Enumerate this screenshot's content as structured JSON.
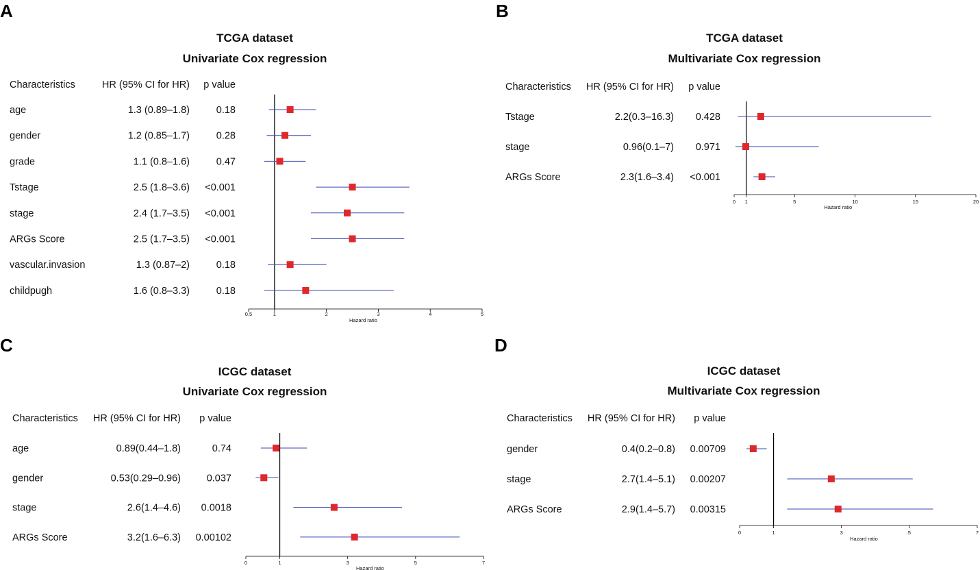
{
  "figure": {
    "colors": {
      "ci_line": "#3b47b5",
      "marker": "#e0282b",
      "axis": "#000000"
    }
  },
  "chart_data": [
    {
      "panel": "A",
      "type": "forest",
      "title": "TCGA dataset",
      "subtitle": "Univariate Cox regression",
      "headers": [
        "Characteristics",
        "HR (95% CI for HR)",
        "p value"
      ],
      "rows": [
        {
          "name": "age",
          "hr_text": "1.3 (0.89–1.8)",
          "p": "0.18",
          "hr": 1.3,
          "lo": 0.89,
          "hi": 1.8
        },
        {
          "name": "gender",
          "hr_text": "1.2 (0.85–1.7)",
          "p": "0.28",
          "hr": 1.2,
          "lo": 0.85,
          "hi": 1.7
        },
        {
          "name": "grade",
          "hr_text": "1.1 (0.8–1.6)",
          "p": "0.47",
          "hr": 1.1,
          "lo": 0.8,
          "hi": 1.6
        },
        {
          "name": "Tstage",
          "hr_text": "2.5 (1.8–3.6)",
          "p": "<0.001",
          "hr": 2.5,
          "lo": 1.8,
          "hi": 3.6
        },
        {
          "name": "stage",
          "hr_text": "2.4 (1.7–3.5)",
          "p": "<0.001",
          "hr": 2.4,
          "lo": 1.7,
          "hi": 3.5
        },
        {
          "name": "ARGs Score",
          "hr_text": "2.5 (1.7–3.5)",
          "p": "<0.001",
          "hr": 2.5,
          "lo": 1.7,
          "hi": 3.5
        },
        {
          "name": "vascular.invasion",
          "hr_text": "1.3 (0.87–2)",
          "p": "0.18",
          "hr": 1.3,
          "lo": 0.87,
          "hi": 2.0
        },
        {
          "name": "childpugh",
          "hr_text": "1.6 (0.8–3.3)",
          "p": "0.18",
          "hr": 1.6,
          "lo": 0.8,
          "hi": 3.3
        }
      ],
      "xlim": [
        0.5,
        5
      ],
      "xticks": [
        0.5,
        1,
        2,
        3,
        4,
        5
      ],
      "xticklabels": [
        "0.5",
        "1",
        "2",
        "3",
        "4",
        "5"
      ],
      "ref_line": 1,
      "xlabel": "Hazard ratio"
    },
    {
      "panel": "B",
      "type": "forest",
      "title": "TCGA  dataset",
      "subtitle": "Multivariate Cox regression",
      "headers": [
        "Characteristics",
        "HR (95% CI for HR)",
        "p value"
      ],
      "rows": [
        {
          "name": "Tstage",
          "hr_text": "2.2(0.3–16.3)",
          "p": "0.428",
          "hr": 2.2,
          "lo": 0.3,
          "hi": 16.3
        },
        {
          "name": "stage",
          "hr_text": "0.96(0.1–7)",
          "p": "0.971",
          "hr": 0.96,
          "lo": 0.1,
          "hi": 7.0
        },
        {
          "name": "ARGs Score",
          "hr_text": "2.3(1.6–3.4)",
          "p": "<0.001",
          "hr": 2.3,
          "lo": 1.6,
          "hi": 3.4
        }
      ],
      "xlim": [
        0,
        20
      ],
      "xticks": [
        0,
        1,
        5,
        10,
        15,
        20
      ],
      "xticklabels": [
        "0",
        "1",
        "5",
        "10",
        "15",
        "20"
      ],
      "ref_line": 1,
      "xlabel": "Hazard ratio"
    },
    {
      "panel": "C",
      "type": "forest",
      "title": "ICGC dataset",
      "subtitle": "Univariate Cox regression",
      "headers": [
        "Characteristics",
        "HR (95% CI for HR)",
        "p value"
      ],
      "rows": [
        {
          "name": "age",
          "hr_text": "0.89(0.44–1.8)",
          "p": "0.74",
          "hr": 0.89,
          "lo": 0.44,
          "hi": 1.8
        },
        {
          "name": "gender",
          "hr_text": "0.53(0.29–0.96)",
          "p": "0.037",
          "hr": 0.53,
          "lo": 0.29,
          "hi": 0.96
        },
        {
          "name": "stage",
          "hr_text": "2.6(1.4–4.6)",
          "p": "0.0018",
          "hr": 2.6,
          "lo": 1.4,
          "hi": 4.6
        },
        {
          "name": "ARGs Score",
          "hr_text": "3.2(1.6–6.3)",
          "p": "0.00102",
          "hr": 3.2,
          "lo": 1.6,
          "hi": 6.3
        }
      ],
      "xlim": [
        0,
        7
      ],
      "xticks": [
        0,
        1,
        3,
        5,
        7
      ],
      "xticklabels": [
        "0",
        "1",
        "3",
        "5",
        "7"
      ],
      "ref_line": 1,
      "xlabel": "Hazard ratio"
    },
    {
      "panel": "D",
      "type": "forest",
      "title": "ICGC dataset",
      "subtitle": "Multivariate Cox regression",
      "headers": [
        "Characteristics",
        "HR (95% CI for HR)",
        "p value"
      ],
      "rows": [
        {
          "name": "gender",
          "hr_text": "0.4(0.2–0.8)",
          "p": "0.00709",
          "hr": 0.4,
          "lo": 0.2,
          "hi": 0.8
        },
        {
          "name": "stage",
          "hr_text": "2.7(1.4–5.1)",
          "p": "0.00207",
          "hr": 2.7,
          "lo": 1.4,
          "hi": 5.1
        },
        {
          "name": "ARGs Score",
          "hr_text": "2.9(1.4–5.7)",
          "p": "0.00315",
          "hr": 2.9,
          "lo": 1.4,
          "hi": 5.7
        }
      ],
      "xlim": [
        0,
        7
      ],
      "xticks": [
        0,
        1,
        3,
        5,
        7
      ],
      "xticklabels": [
        "0",
        "1",
        "3",
        "5",
        "7"
      ],
      "ref_line": 1,
      "xlabel": "Hazard ratio"
    }
  ]
}
